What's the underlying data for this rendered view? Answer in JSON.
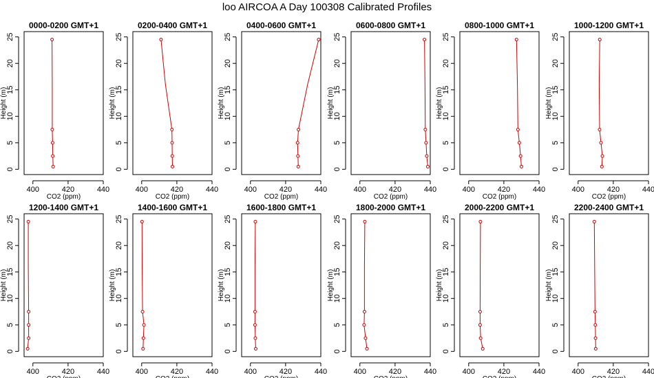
{
  "title": "loo AIRCOA A  Day 100308  Calibrated Profiles",
  "chart_data": {
    "type": "line",
    "xlabel": "CO2 (ppm)",
    "ylabel": "Height (m)",
    "xlim": [
      395,
      440
    ],
    "ylim": [
      -1,
      26
    ],
    "x_ticks": [
      400,
      420,
      440
    ],
    "y_ticks": [
      0,
      5,
      10,
      15,
      20,
      25
    ],
    "grid": false,
    "line_color": "#cc0000",
    "heights": [
      0.5,
      2.5,
      5,
      7.5,
      16,
      24.5
    ],
    "marker_heights": [
      0.5,
      2.5,
      5,
      7.5,
      24.5
    ],
    "panels": [
      {
        "title": "0000-0200 GMT+1",
        "co2": [
          411.5,
          411.3,
          411.2,
          411.0,
          411.0,
          410.9
        ]
      },
      {
        "title": "0200-0400 GMT+1",
        "co2": [
          417.5,
          417.4,
          417.3,
          417.2,
          413.5,
          411.0
        ]
      },
      {
        "title": "0400-0600 GMT+1",
        "co2": [
          427.2,
          427.0,
          426.8,
          427.3,
          432.5,
          438.8
        ]
      },
      {
        "title": "0600-0800 GMT+1",
        "co2": [
          438.6,
          438.0,
          437.6,
          437.2,
          437.0,
          436.7
        ]
      },
      {
        "title": "0800-1000 GMT+1",
        "co2": [
          430.0,
          429.5,
          428.8,
          428.0,
          427.7,
          427.2
        ]
      },
      {
        "title": "1000-1200 GMT+1",
        "co2": [
          413.5,
          413.8,
          413.0,
          412.2,
          412.0,
          412.3
        ]
      },
      {
        "title": "1200-1400 GMT+1",
        "co2": [
          397.0,
          397.6,
          397.6,
          397.6,
          397.4,
          397.4
        ]
      },
      {
        "title": "1400-1600 GMT+1",
        "co2": [
          400.8,
          401.0,
          401.3,
          400.5,
          400.3,
          400.2
        ]
      },
      {
        "title": "1600-1800 GMT+1",
        "co2": [
          403.0,
          402.8,
          402.6,
          402.6,
          402.6,
          402.8
        ]
      },
      {
        "title": "1800-2000 GMT+1",
        "co2": [
          404.0,
          403.2,
          402.4,
          402.6,
          402.6,
          402.8
        ]
      },
      {
        "title": "2000-2200 GMT+1",
        "co2": [
          408.0,
          406.8,
          406.5,
          406.5,
          406.6,
          406.7
        ]
      },
      {
        "title": "2200-2400 GMT+1",
        "co2": [
          410.0,
          409.9,
          409.8,
          409.6,
          409.4,
          409.2
        ]
      }
    ]
  }
}
